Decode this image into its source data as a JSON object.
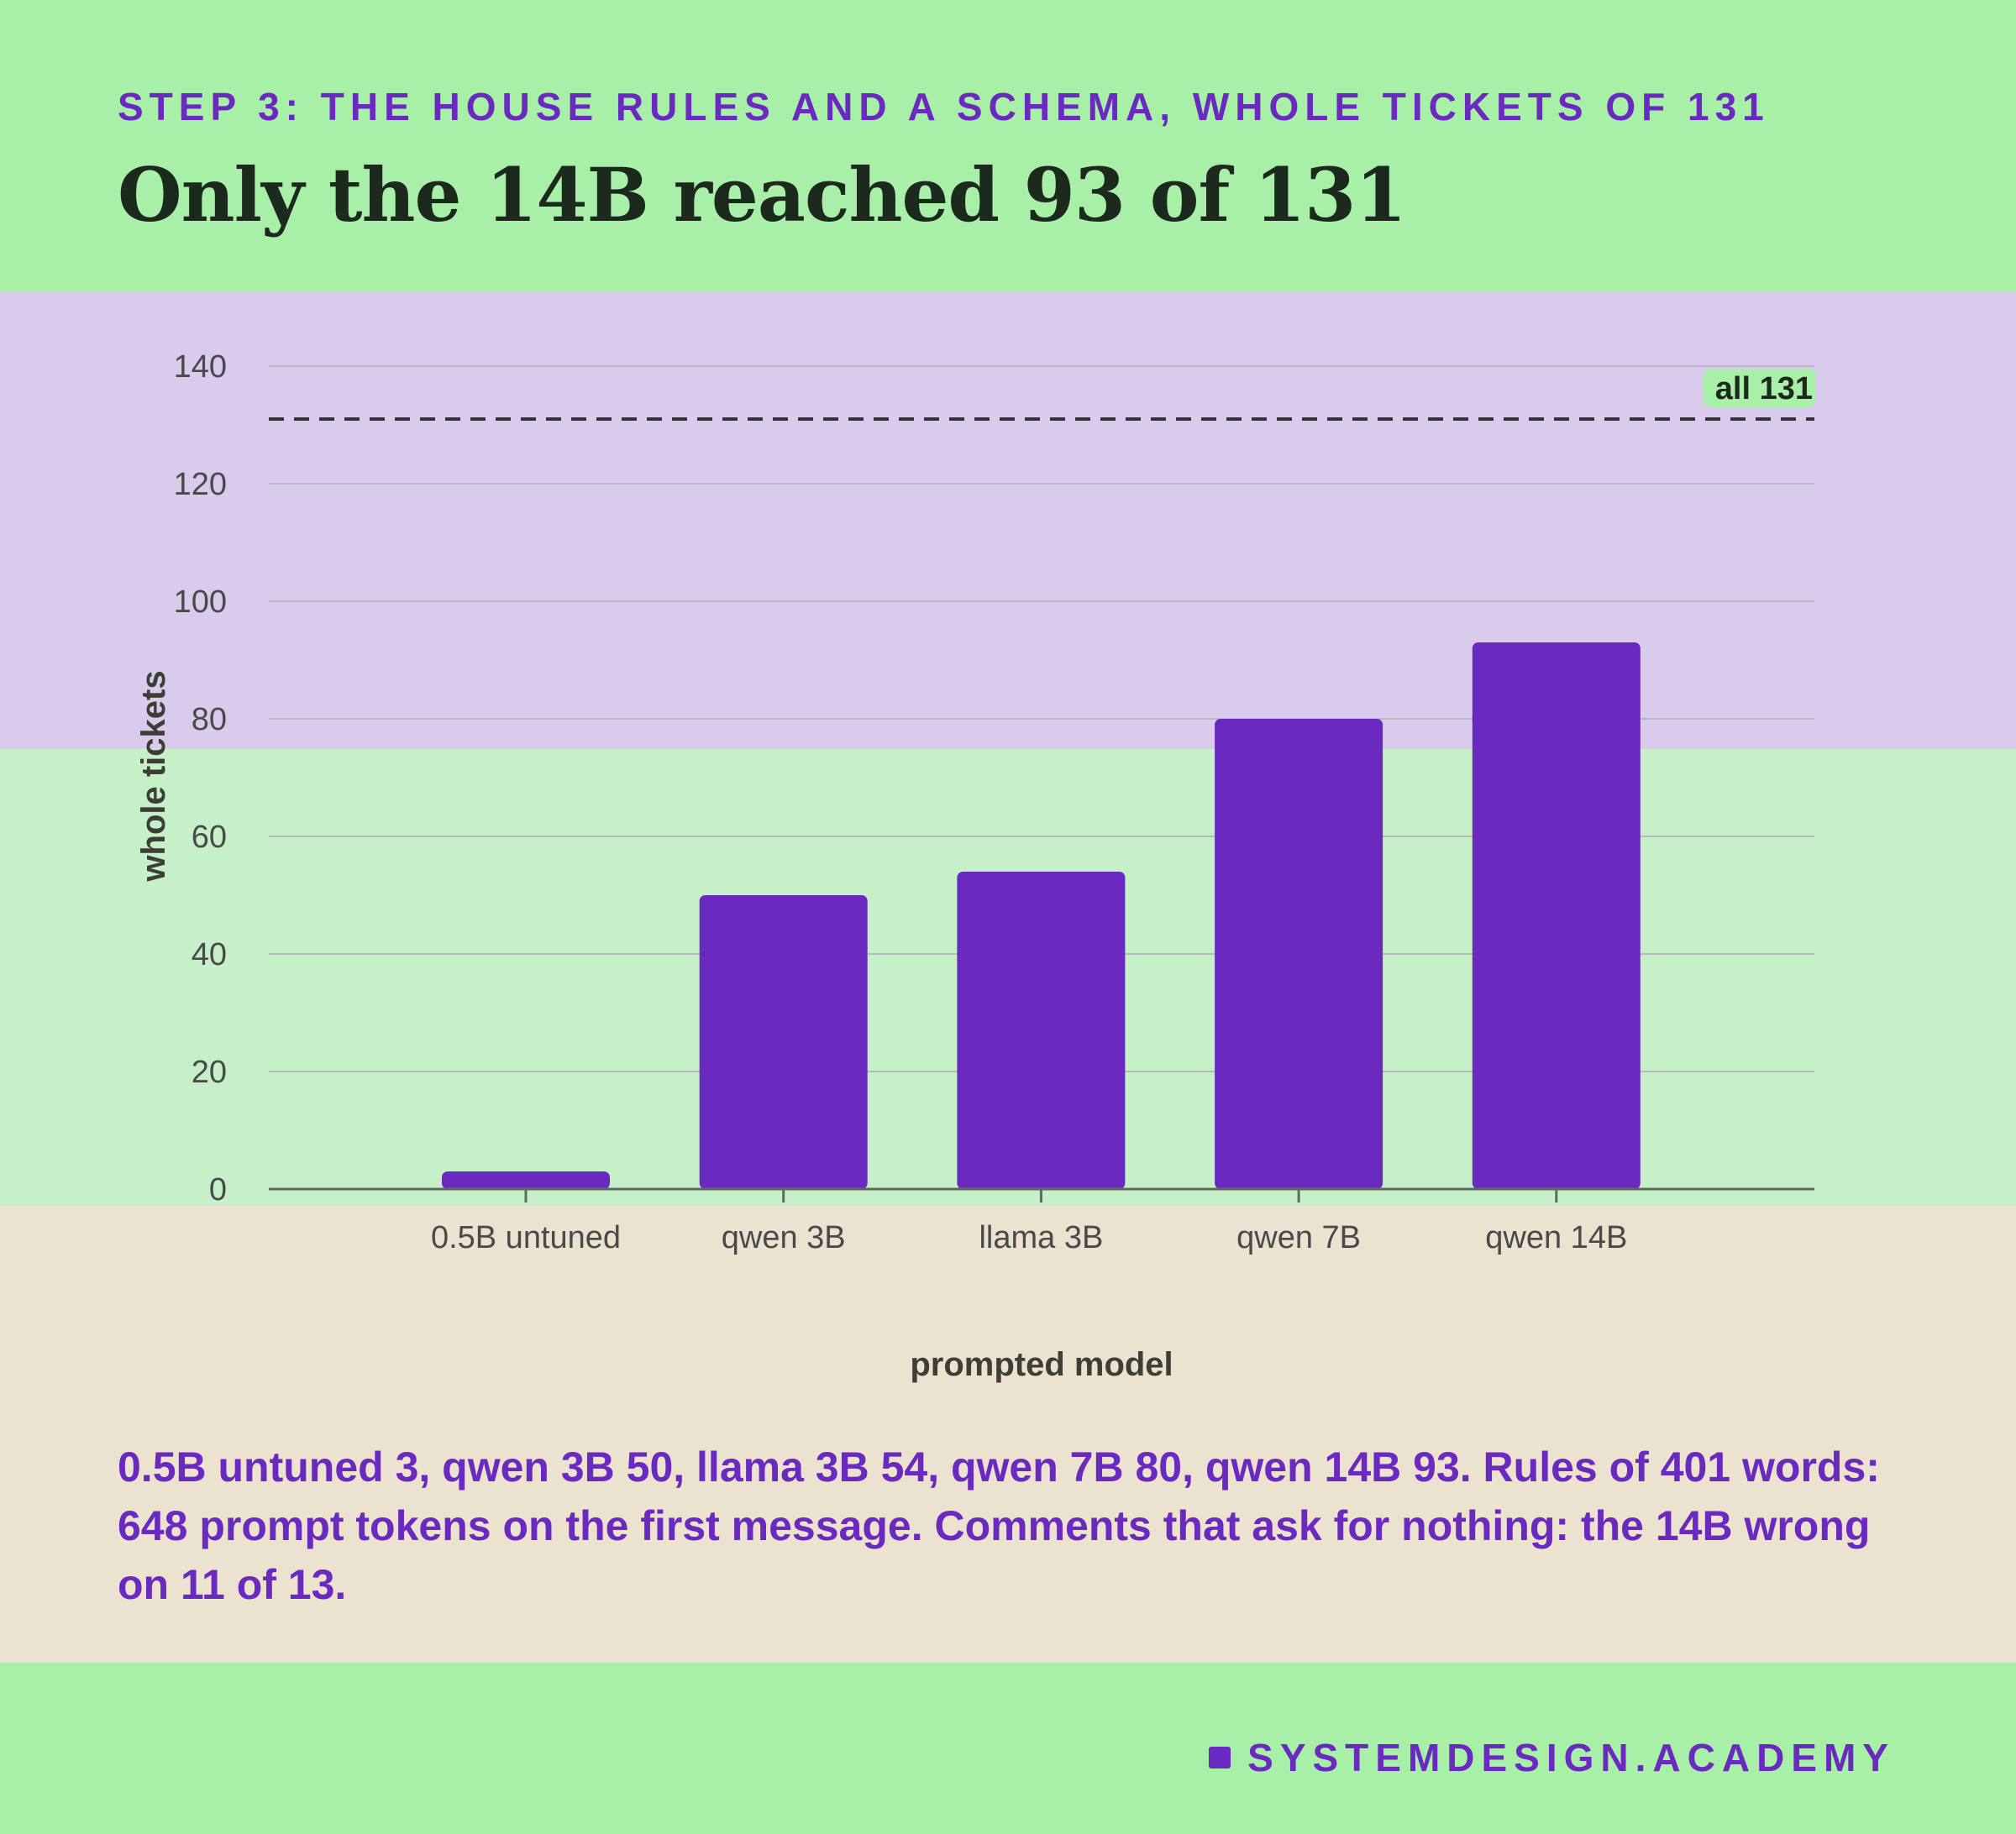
{
  "header": {
    "eyebrow": "STEP 3: THE HOUSE RULES AND A SCHEMA, WHOLE TICKETS OF 131",
    "headline": "Only the 14B reached 93 of 131"
  },
  "chart_data": {
    "type": "bar",
    "categories": [
      "0.5B untuned",
      "qwen 3B",
      "llama 3B",
      "qwen 7B",
      "qwen 14B"
    ],
    "values": [
      3,
      50,
      54,
      80,
      93
    ],
    "xlabel": "prompted model",
    "ylabel": "whole tickets",
    "ylim": [
      0,
      140
    ],
    "yticks": [
      0,
      20,
      40,
      60,
      80,
      100,
      120,
      140
    ],
    "grid": true,
    "reference_line": {
      "value": 131,
      "label": "all 131",
      "style": "dashed"
    },
    "bar_color": "#6a2ac0"
  },
  "summary": "0.5B untuned 3, qwen 3B 50, llama 3B 54, qwen 7B 80, qwen 14B 93. Rules of 401 words: 648 prompt tokens on the first message. Comments that ask for nothing: the 14B wrong on 11 of 13.",
  "footer": {
    "brand": "SYSTEMDESIGN.ACADEMY"
  },
  "colors": {
    "background": "#a8f0a8",
    "accent": "#6a2ac0",
    "band_purple": "#d9cbeb",
    "band_lightgreen": "#c6f0c8",
    "band_beige": "#ebe3d0"
  }
}
